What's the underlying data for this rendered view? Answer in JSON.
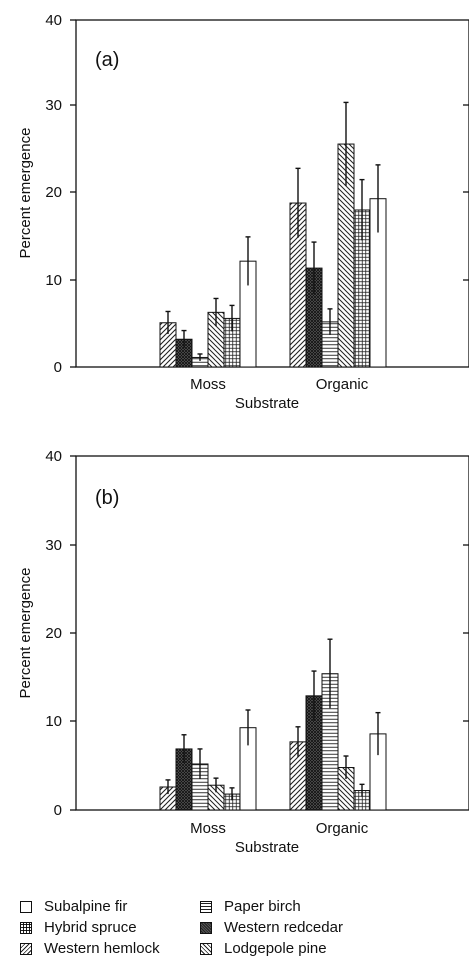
{
  "chart_data": [
    {
      "type": "bar",
      "panel_label": "(a)",
      "xlabel": "Substrate",
      "ylabel": "Percent emergence",
      "ylim": [
        0,
        40
      ],
      "yticks": [
        0,
        10,
        20,
        30,
        40
      ],
      "categories": [
        "Moss",
        "Organic"
      ],
      "series": [
        {
          "name": "Western hemlock",
          "pattern": "diag-right",
          "values": [
            5.1,
            18.9
          ],
          "errors": [
            1.3,
            4.0
          ]
        },
        {
          "name": "Western redcedar",
          "pattern": "cross-dark",
          "values": [
            3.2,
            11.4
          ],
          "errors": [
            1.0,
            3.0
          ]
        },
        {
          "name": "Paper birch",
          "pattern": "horizontal",
          "values": [
            1.1,
            5.2
          ],
          "errors": [
            0.4,
            1.5
          ]
        },
        {
          "name": "Lodgepole pine",
          "pattern": "diag-left",
          "values": [
            6.3,
            25.7
          ],
          "errors": [
            1.6,
            4.8
          ]
        },
        {
          "name": "Hybrid spruce",
          "pattern": "grid",
          "values": [
            5.6,
            18.1
          ],
          "errors": [
            1.5,
            3.5
          ]
        },
        {
          "name": "Subalpine fir",
          "pattern": "open",
          "values": [
            12.2,
            19.4
          ],
          "errors": [
            2.8,
            3.9
          ]
        }
      ]
    },
    {
      "type": "bar",
      "panel_label": "(b)",
      "xlabel": "Substrate",
      "ylabel": "Percent emergence",
      "ylim": [
        0,
        40
      ],
      "yticks": [
        0,
        10,
        20,
        30,
        40
      ],
      "categories": [
        "Moss",
        "Organic"
      ],
      "series": [
        {
          "name": "Western hemlock",
          "pattern": "diag-right",
          "values": [
            2.6,
            7.7
          ],
          "errors": [
            0.8,
            1.7
          ]
        },
        {
          "name": "Western redcedar",
          "pattern": "cross-dark",
          "values": [
            6.9,
            12.9
          ],
          "errors": [
            1.6,
            2.8
          ]
        },
        {
          "name": "Paper birch",
          "pattern": "horizontal",
          "values": [
            5.2,
            15.4
          ],
          "errors": [
            1.7,
            3.9
          ]
        },
        {
          "name": "Lodgepole pine",
          "pattern": "diag-left",
          "values": [
            2.8,
            4.8
          ],
          "errors": [
            0.8,
            1.3
          ]
        },
        {
          "name": "Hybrid spruce",
          "pattern": "grid",
          "values": [
            1.8,
            2.2
          ],
          "errors": [
            0.7,
            0.7
          ]
        },
        {
          "name": "Subalpine fir",
          "pattern": "open",
          "values": [
            9.3,
            8.6
          ],
          "errors": [
            2.0,
            2.4
          ]
        }
      ]
    }
  ],
  "legend": [
    {
      "name": "Subalpine fir",
      "pattern": "open"
    },
    {
      "name": "Paper birch",
      "pattern": "horizontal"
    },
    {
      "name": "Hybrid spruce",
      "pattern": "grid"
    },
    {
      "name": "Western redcedar",
      "pattern": "cross-dark"
    },
    {
      "name": "Western hemlock",
      "pattern": "diag-right"
    },
    {
      "name": "Lodgepole pine",
      "pattern": "diag-left"
    }
  ]
}
